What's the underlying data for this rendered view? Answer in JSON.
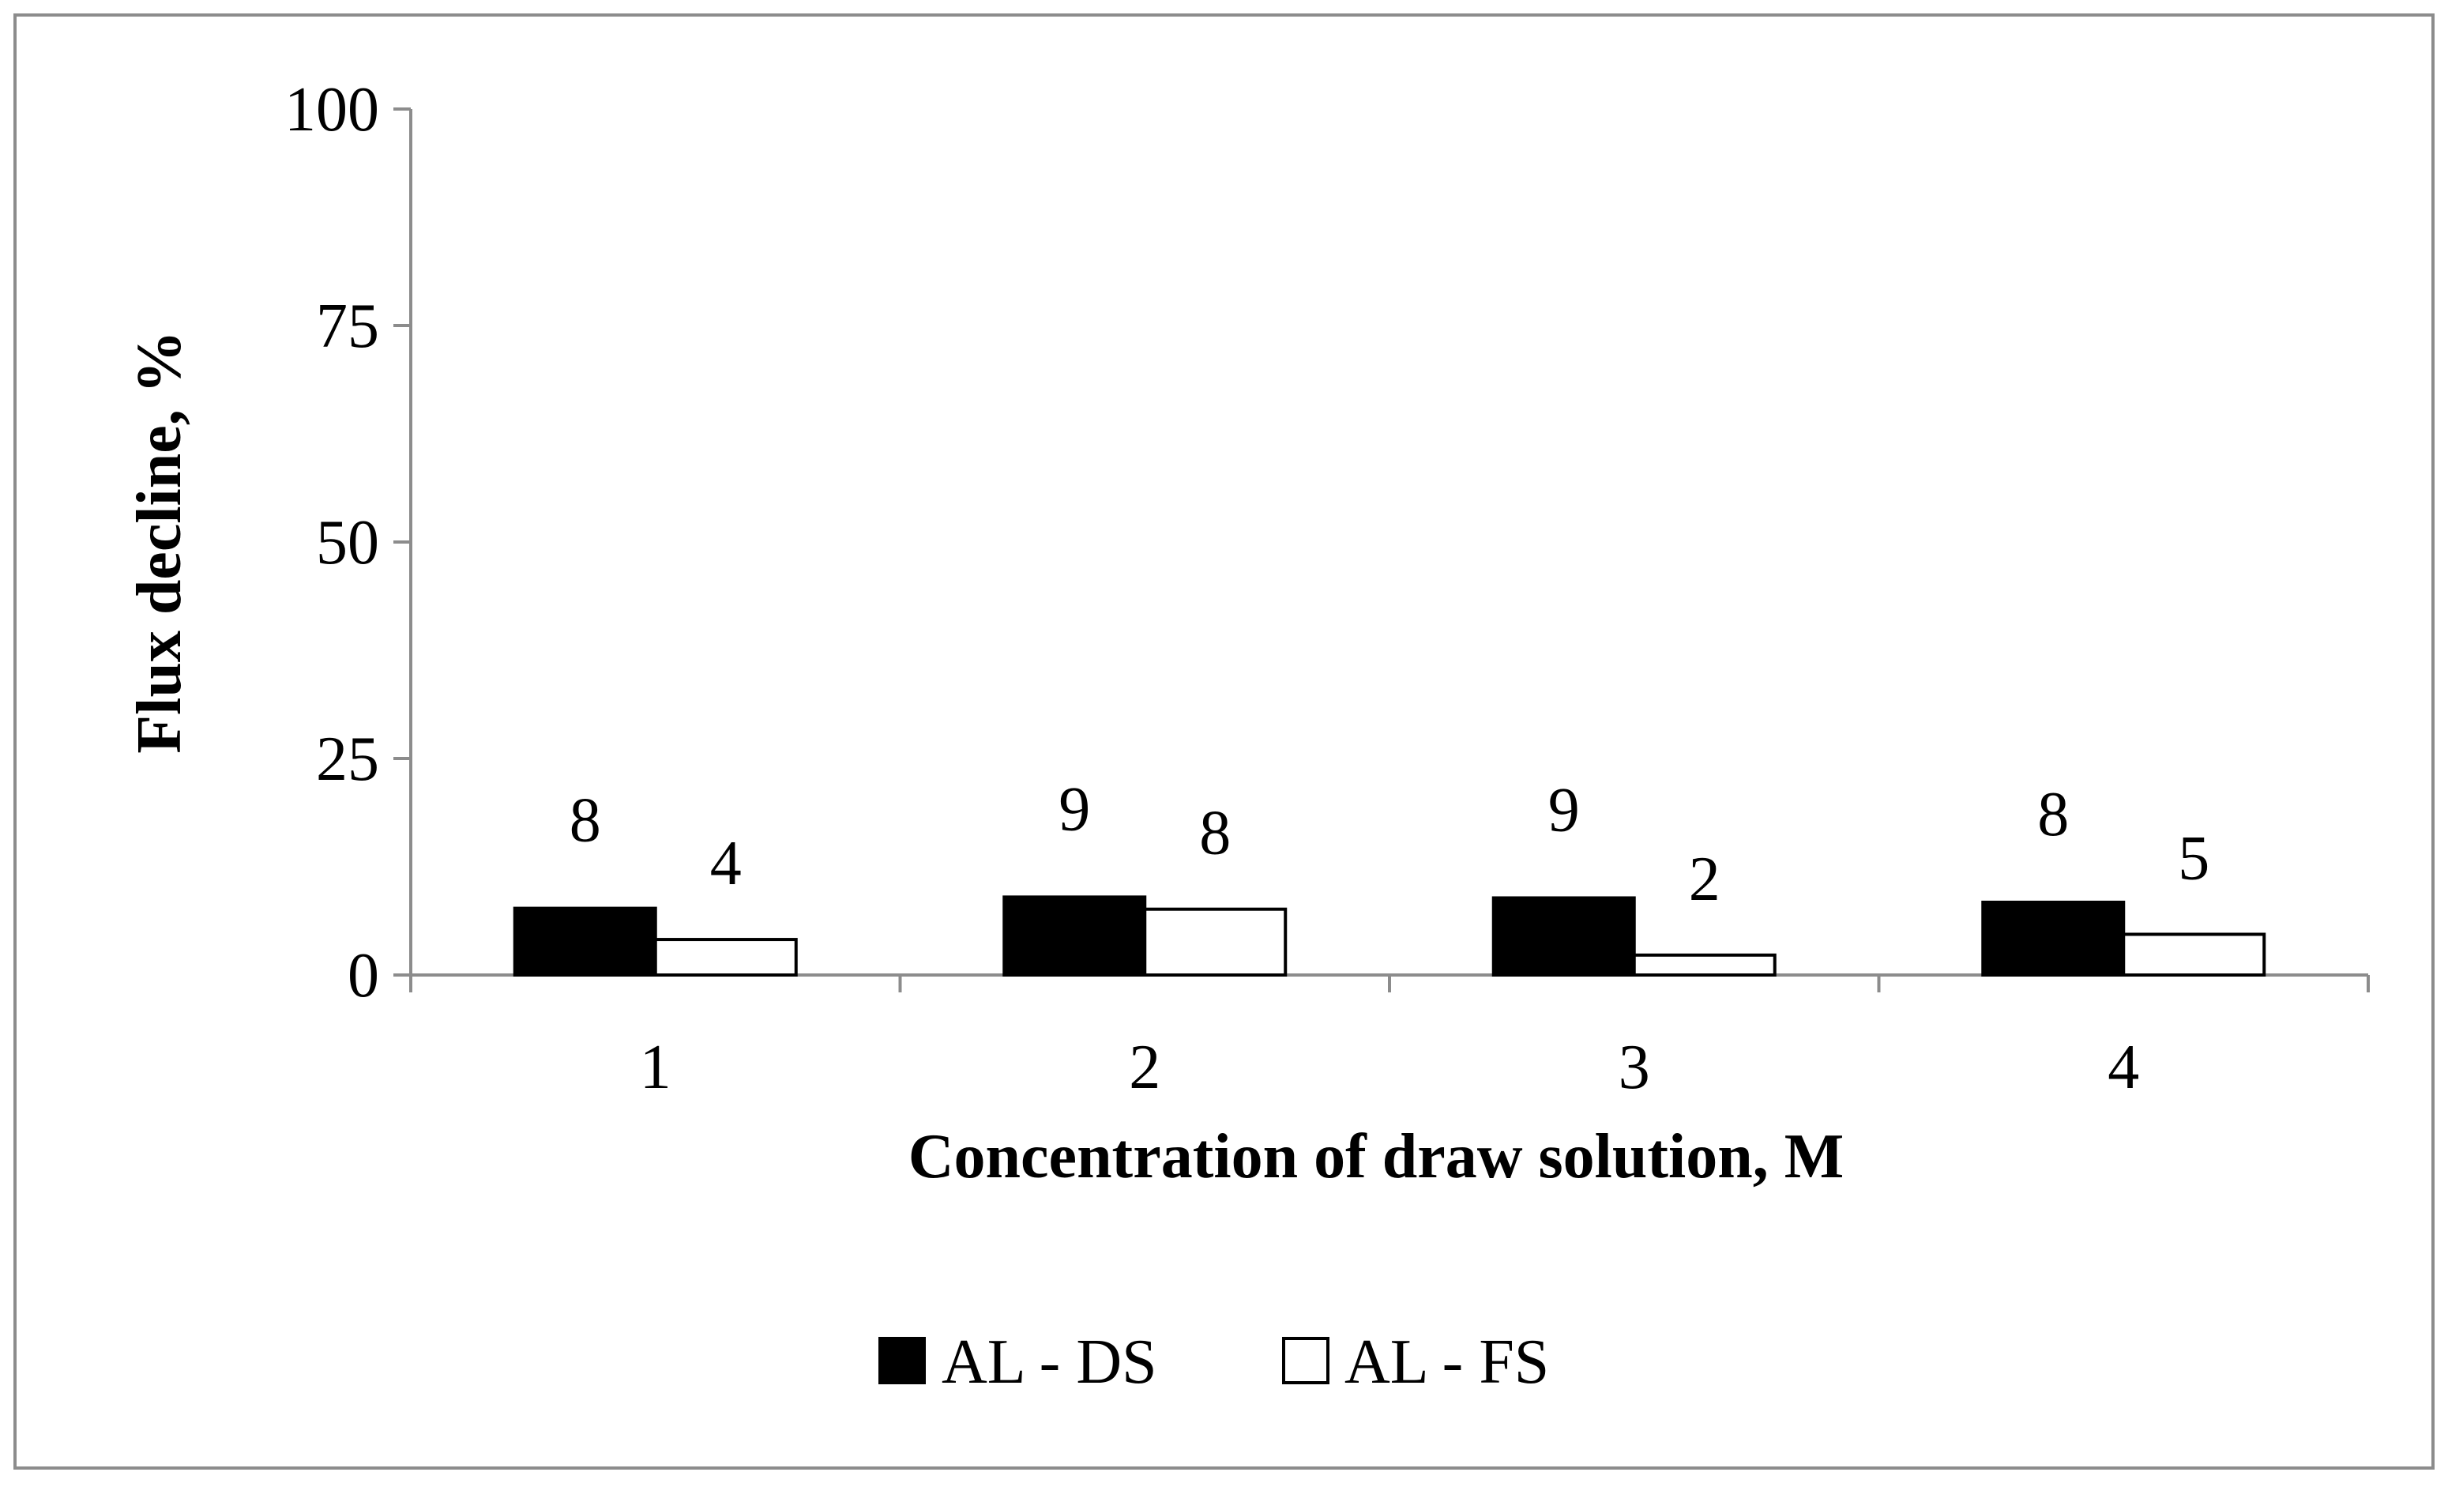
{
  "chart_data": {
    "type": "bar",
    "title": "",
    "xlabel": "Concentration of draw solution, M",
    "ylabel": "Flux decline, %",
    "categories": [
      "1",
      "2",
      "3",
      "4"
    ],
    "ylim": [
      0,
      100
    ],
    "yticks": [
      0,
      25,
      50,
      75,
      100
    ],
    "grid": false,
    "legend_position": "bottom-center",
    "series": [
      {
        "name": "AL - DS",
        "values": [
          7.7,
          9.0,
          8.9,
          8.4
        ],
        "labels": [
          "8",
          "9",
          "9",
          "8"
        ],
        "color": "#000000",
        "fill": "solid"
      },
      {
        "name": "AL - FS",
        "values": [
          4.1,
          7.6,
          2.3,
          4.7
        ],
        "labels": [
          "4",
          "8",
          "2",
          "5"
        ],
        "color": "#000000",
        "fill": "hollow"
      }
    ]
  }
}
